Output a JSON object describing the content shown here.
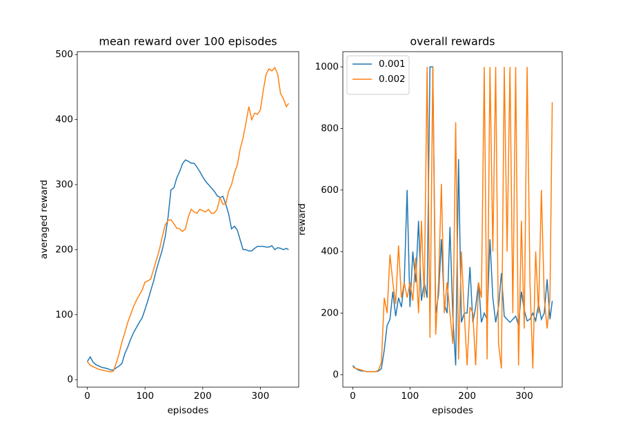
{
  "chart_data": [
    {
      "type": "line",
      "title": "mean reward over 100 episodes",
      "x_label": "episodes",
      "y_label": "averaged reward",
      "x": [
        0,
        5,
        10,
        15,
        20,
        25,
        30,
        35,
        40,
        45,
        50,
        55,
        60,
        65,
        70,
        75,
        80,
        85,
        90,
        95,
        100,
        105,
        110,
        115,
        120,
        125,
        130,
        135,
        140,
        145,
        150,
        155,
        160,
        165,
        170,
        175,
        180,
        185,
        190,
        195,
        200,
        205,
        210,
        215,
        220,
        225,
        230,
        235,
        240,
        245,
        250,
        255,
        260,
        265,
        270,
        275,
        280,
        285,
        290,
        295,
        300,
        305,
        310,
        315,
        320,
        325,
        330,
        335,
        340,
        345,
        349
      ],
      "xlim": [
        -17.45,
        366.45
      ],
      "xticks": [
        0,
        100,
        200,
        300
      ],
      "ylim": [
        -11.5,
        504.5
      ],
      "yticks": [
        0,
        100,
        200,
        300,
        400,
        500
      ],
      "series": [
        {
          "color": "#1f77b4",
          "values": [
            28,
            35,
            27,
            23,
            21,
            19,
            18,
            17,
            15,
            15,
            18,
            21,
            25,
            40,
            50,
            62,
            72,
            80,
            88,
            95,
            108,
            122,
            137,
            152,
            170,
            185,
            200,
            220,
            250,
            292,
            295,
            310,
            320,
            332,
            338,
            336,
            333,
            333,
            327,
            320,
            312,
            305,
            300,
            295,
            290,
            283,
            280,
            282,
            270,
            255,
            232,
            236,
            230,
            215,
            200,
            200,
            198,
            198,
            202,
            205,
            205,
            205,
            204,
            204,
            206,
            200,
            203,
            202,
            200,
            202,
            200
          ]
        },
        {
          "color": "#ff7f0e",
          "values": [
            28,
            22,
            20,
            18,
            16,
            15,
            14,
            13,
            12,
            13,
            25,
            40,
            58,
            72,
            88,
            100,
            112,
            122,
            130,
            138,
            150,
            152,
            155,
            170,
            185,
            200,
            220,
            238,
            245,
            246,
            240,
            233,
            232,
            228,
            232,
            250,
            262,
            258,
            256,
            262,
            260,
            258,
            262,
            256,
            256,
            262,
            280,
            270,
            270,
            290,
            300,
            318,
            330,
            355,
            372,
            395,
            420,
            400,
            410,
            408,
            415,
            445,
            470,
            478,
            475,
            480,
            470,
            440,
            432,
            420,
            425
          ]
        }
      ]
    },
    {
      "type": "line",
      "title": "overall rewards",
      "x_label": "episodes",
      "y_label": "reward",
      "legend": "upper left",
      "x": [
        0,
        5,
        10,
        15,
        20,
        25,
        30,
        35,
        40,
        45,
        50,
        55,
        60,
        65,
        70,
        75,
        80,
        85,
        90,
        95,
        100,
        105,
        110,
        115,
        120,
        125,
        130,
        135,
        140,
        145,
        150,
        155,
        160,
        165,
        170,
        175,
        180,
        185,
        190,
        195,
        200,
        205,
        210,
        215,
        220,
        225,
        230,
        235,
        240,
        245,
        250,
        255,
        260,
        265,
        270,
        275,
        280,
        285,
        290,
        295,
        300,
        305,
        310,
        315,
        320,
        325,
        330,
        335,
        340,
        345,
        349
      ],
      "xlim": [
        -17.45,
        366.45
      ],
      "xticks": [
        0,
        100,
        200,
        300
      ],
      "ylim": [
        -40.5,
        1049.5
      ],
      "yticks": [
        0,
        200,
        400,
        600,
        800,
        1000
      ],
      "series": [
        {
          "name": "0.001",
          "color": "#1f77b4",
          "values": [
            30,
            20,
            15,
            12,
            12,
            10,
            10,
            10,
            10,
            12,
            20,
            80,
            160,
            180,
            270,
            190,
            250,
            220,
            300,
            600,
            220,
            400,
            300,
            500,
            240,
            300,
            250,
            1000,
            1000,
            200,
            260,
            440,
            230,
            200,
            480,
            190,
            30,
            700,
            170,
            200,
            200,
            350,
            170,
            220,
            300,
            170,
            200,
            180,
            440,
            250,
            170,
            220,
            330,
            190,
            180,
            170,
            180,
            190,
            160,
            270,
            210,
            175,
            180,
            200,
            175,
            230,
            180,
            200,
            310,
            180,
            240
          ]
        },
        {
          "name": "0.002",
          "color": "#ff7f0e",
          "values": [
            25,
            20,
            18,
            15,
            12,
            10,
            10,
            10,
            10,
            15,
            40,
            250,
            200,
            390,
            300,
            230,
            420,
            250,
            300,
            250,
            300,
            240,
            380,
            200,
            500,
            250,
            1000,
            120,
            1000,
            130,
            300,
            620,
            200,
            300,
            200,
            100,
            820,
            50,
            400,
            200,
            30,
            220,
            200,
            30,
            300,
            250,
            1000,
            50,
            1000,
            400,
            1000,
            100,
            20,
            1000,
            400,
            1000,
            200,
            1000,
            30,
            500,
            150,
            1000,
            300,
            20,
            400,
            200,
            600,
            250,
            150,
            250,
            885
          ]
        }
      ]
    }
  ]
}
